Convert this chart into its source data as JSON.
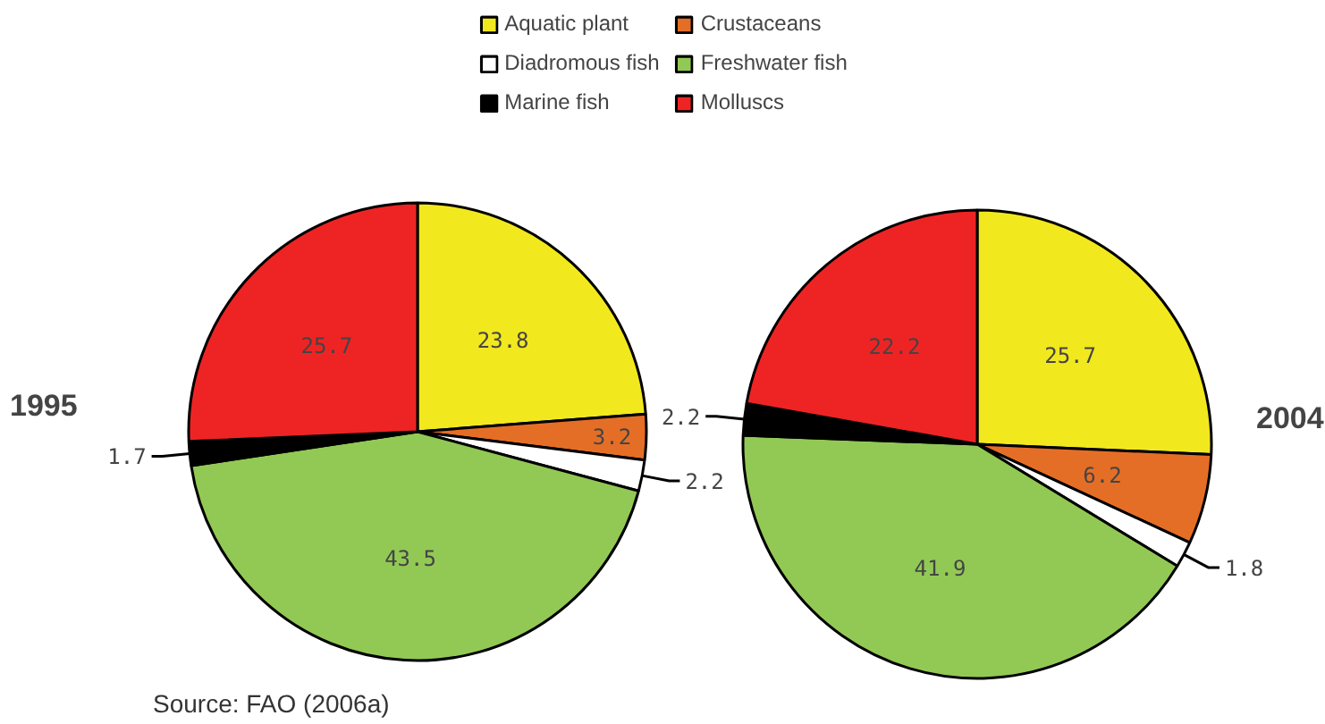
{
  "chart_data": [
    {
      "type": "pie",
      "title": "1995",
      "categories": [
        "Aquatic plant",
        "Crustaceans",
        "Diadromous fish",
        "Freshwater fish",
        "Marine fish",
        "Molluscs"
      ],
      "values": [
        23.8,
        3.2,
        2.2,
        43.5,
        1.7,
        25.7
      ],
      "colors": [
        "#f2e81e",
        "#e56e26",
        "#ffffff",
        "#92c955",
        "#000000",
        "#ee2424"
      ],
      "data_labels": true,
      "legend": "top",
      "annotations": [
        "Source: FAO (2006a)"
      ]
    },
    {
      "type": "pie",
      "title": "2004",
      "categories": [
        null,
        null,
        null,
        null,
        null,
        null
      ],
      "values": [
        25.7,
        6.2,
        1.8,
        41.9,
        2.2,
        22.2
      ],
      "colors": [
        "#f2e81e",
        "#e56e26",
        "#ffffff",
        "#92c955",
        "#000000",
        "#ee2424"
      ],
      "data_labels": true
    }
  ]
}
